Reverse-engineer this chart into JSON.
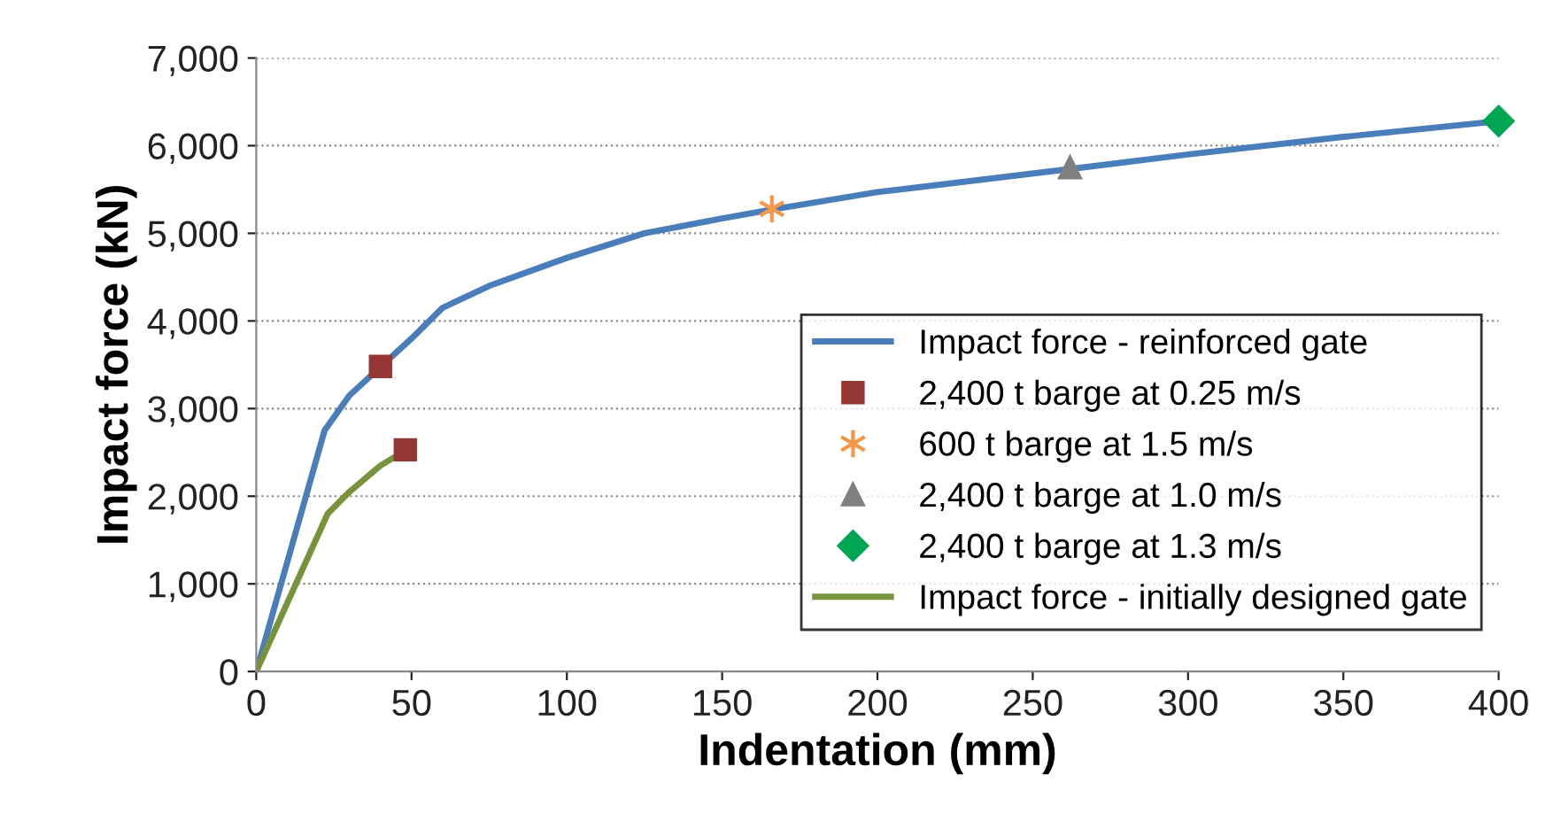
{
  "chart_data": {
    "type": "line",
    "xlabel": "Indentation (mm)",
    "ylabel": "Impact force (kN)",
    "xlim": [
      0,
      400
    ],
    "xticks": [
      0,
      50,
      100,
      150,
      200,
      250,
      300,
      350,
      400
    ],
    "ylim": [
      0,
      7000
    ],
    "yticks": [
      {
        "value": 0,
        "label": "0"
      },
      {
        "value": 1000,
        "label": "1,000"
      },
      {
        "value": 2000,
        "label": "2,000"
      },
      {
        "value": 3000,
        "label": "3,000"
      },
      {
        "value": 4000,
        "label": "4,000"
      },
      {
        "value": 5000,
        "label": "5,000"
      },
      {
        "value": 6000,
        "label": "6,000"
      },
      {
        "value": 7000,
        "label": "7,000"
      }
    ],
    "grid": "y",
    "legend": "bottom right",
    "series": [
      {
        "name": "Impact force - reinforced gate",
        "color": "#4a7ebb",
        "marker": "none",
        "x": [
          0,
          22,
          30,
          50,
          60,
          75,
          100,
          125,
          150,
          166,
          200,
          261,
          300,
          350,
          400
        ],
        "values": [
          0,
          2750,
          3150,
          3800,
          4150,
          4400,
          4720,
          5000,
          5170,
          5270,
          5470,
          5730,
          5900,
          6100,
          6280
        ]
      },
      {
        "name": "2,400 t barge at 0.25 m/s",
        "type": "scatter",
        "color": "#953735",
        "marker": "square",
        "x": [
          40,
          48
        ],
        "values": [
          3480,
          2530
        ]
      },
      {
        "name": "600 t barge at 1.5 m/s",
        "type": "scatter",
        "color": "#f79646",
        "marker": "cross",
        "x": [
          166
        ],
        "values": [
          5280
        ]
      },
      {
        "name": "2,400 t barge at 1.0 m/s",
        "type": "scatter",
        "color": "#7f7f7f",
        "marker": "triangle",
        "x": [
          262
        ],
        "values": [
          5750
        ]
      },
      {
        "name": "2,400 t barge at 1.3 m/s",
        "type": "scatter",
        "color": "#00a651",
        "marker": "diamond",
        "x": [
          400
        ],
        "values": [
          6280
        ]
      },
      {
        "name": "Impact force - initially designed gate",
        "color": "#77933c",
        "marker": "none",
        "x": [
          0,
          23,
          30,
          40,
          48
        ],
        "values": [
          0,
          1800,
          2050,
          2350,
          2520
        ]
      }
    ]
  }
}
